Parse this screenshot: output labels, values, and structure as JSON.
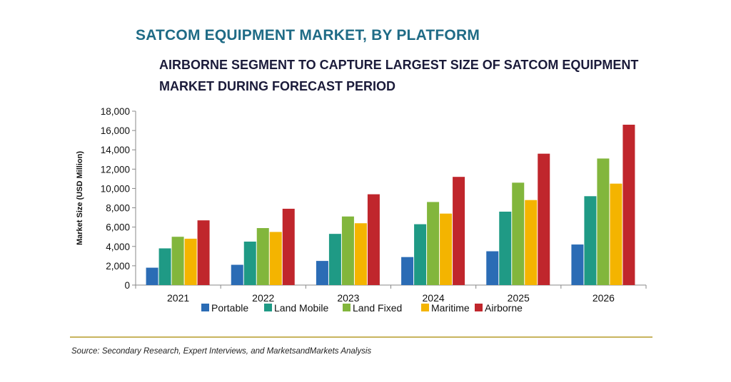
{
  "header": {
    "title": "SATCOM EQUIPMENT MARKET, BY PLATFORM",
    "subtitle": "AIRBORNE SEGMENT TO CAPTURE LARGEST SIZE OF SATCOM EQUIPMENT MARKET DURING FORECAST PERIOD"
  },
  "footer": {
    "source": "Source: Secondary Research, Expert Interviews, and MarketsandMarkets Analysis"
  },
  "chart_data": {
    "type": "bar",
    "title": "SATCOM EQUIPMENT MARKET, BY PLATFORM",
    "subtitle": "AIRBORNE SEGMENT TO CAPTURE LARGEST SIZE OF SATCOM EQUIPMENT MARKET DURING FORECAST PERIOD",
    "xlabel": "",
    "ylabel": "Market Size (USD Million)",
    "ylim": [
      0,
      18000
    ],
    "yticks": [
      0,
      2000,
      4000,
      6000,
      8000,
      10000,
      12000,
      14000,
      16000,
      18000
    ],
    "ytick_labels": [
      "0",
      "2,000",
      "4,000",
      "6,000",
      "8,000",
      "10,000",
      "12,000",
      "14,000",
      "16,000",
      "18,000"
    ],
    "grid": false,
    "legend": "bottom",
    "categories": [
      "2021",
      "2022",
      "2023",
      "2024",
      "2025",
      "2026"
    ],
    "series": [
      {
        "name": "Portable",
        "color": "#2b6cb5",
        "values": [
          1800,
          2100,
          2500,
          2900,
          3500,
          4200
        ]
      },
      {
        "name": "Land Mobile",
        "color": "#1f9a85",
        "values": [
          3800,
          4500,
          5300,
          6300,
          7600,
          9200
        ]
      },
      {
        "name": "Land Fixed",
        "color": "#82b63c",
        "values": [
          5000,
          5900,
          7100,
          8600,
          10600,
          13100
        ]
      },
      {
        "name": "Maritime",
        "color": "#f4b400",
        "values": [
          4800,
          5500,
          6400,
          7400,
          8800,
          10500
        ]
      },
      {
        "name": "Airborne",
        "color": "#c0262c",
        "values": [
          6700,
          7900,
          9400,
          11200,
          13600,
          16600
        ]
      }
    ]
  }
}
